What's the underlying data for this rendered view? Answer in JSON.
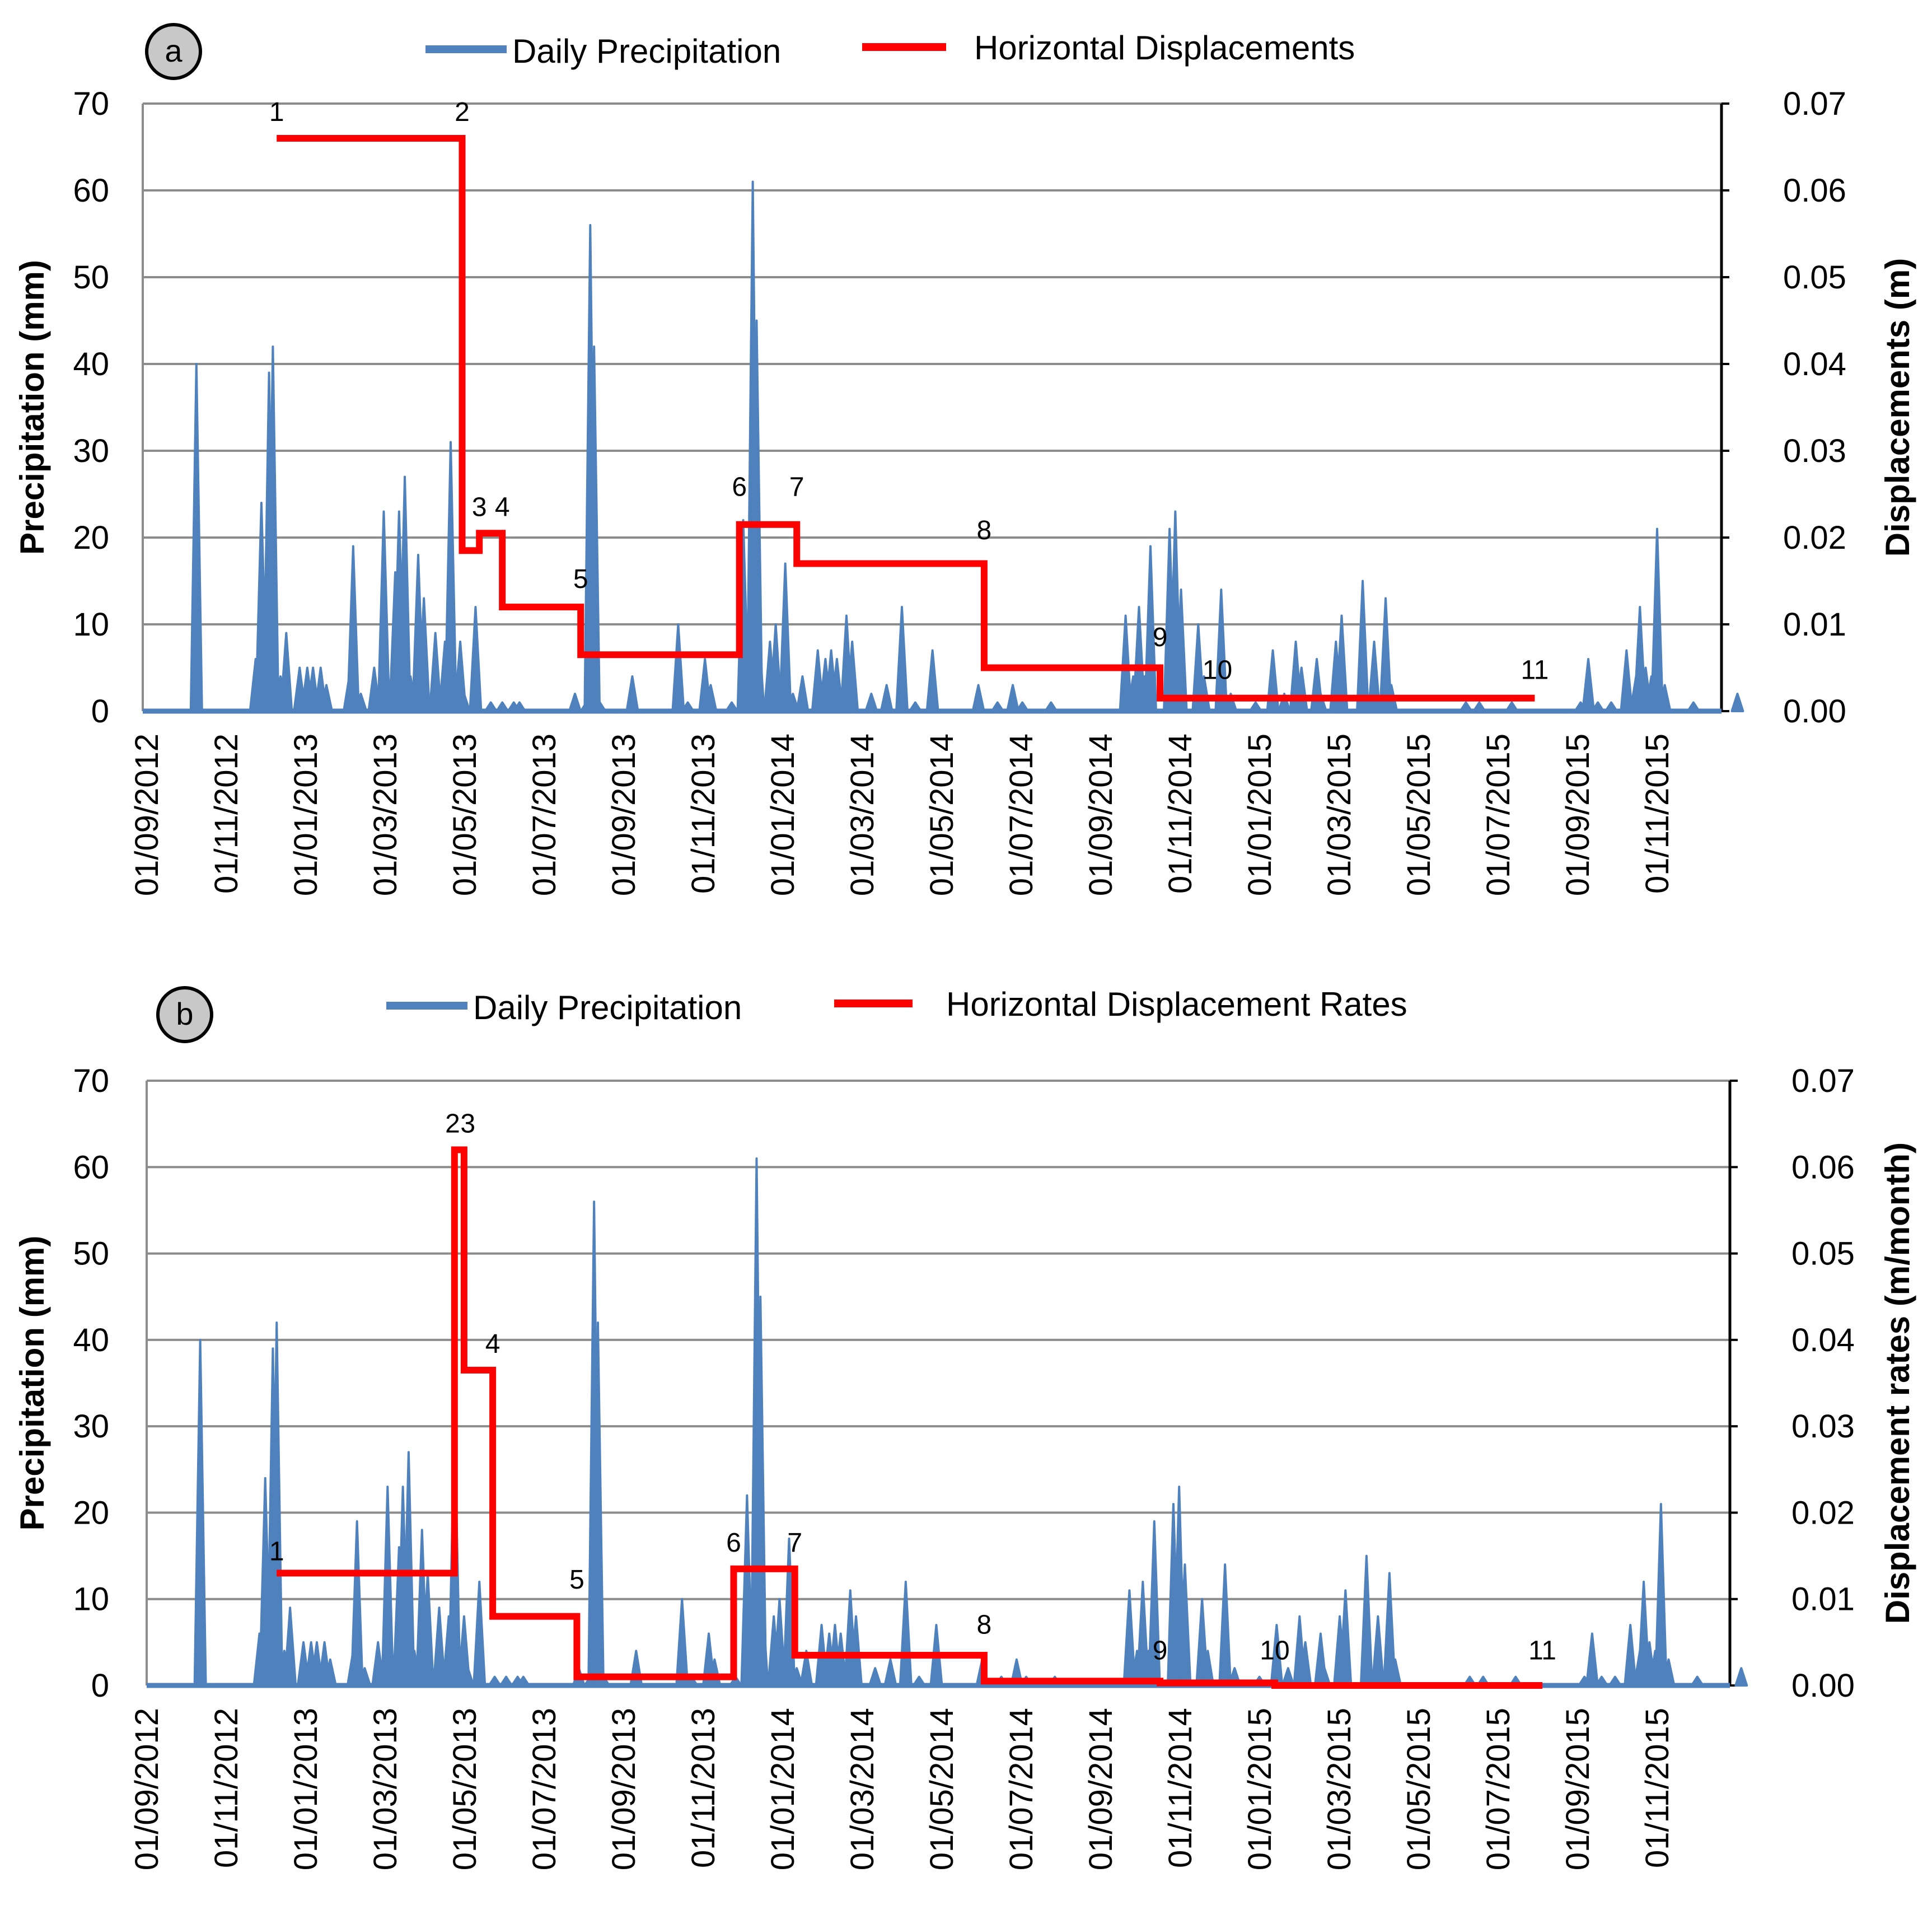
{
  "chart_data": [
    {
      "panel": "a",
      "type": "line",
      "legend": {
        "precip": "Daily Precipitation",
        "disp": "Horizontal Displacements"
      },
      "ylabel_left": "Precipitation (mm)",
      "ylabel_right": "Displacements (m)",
      "ylim_left": [
        0,
        70
      ],
      "ylim_right": [
        0,
        0.07
      ],
      "yticks_left": [
        "0",
        "10",
        "20",
        "30",
        "40",
        "50",
        "60",
        "70"
      ],
      "yticks_right": [
        "0.00",
        "0.01",
        "0.02",
        "0.03",
        "0.04",
        "0.05",
        "0.06",
        "0.07"
      ],
      "x_ticks": [
        "01/09/2012",
        "01/11/2012",
        "01/01/2013",
        "01/03/2013",
        "01/05/2013",
        "01/07/2013",
        "01/09/2013",
        "01/11/2013",
        "01/01/2014",
        "01/03/2014",
        "01/05/2014",
        "01/07/2014",
        "01/09/2014",
        "01/11/2014",
        "01/01/2015",
        "01/03/2015",
        "01/05/2015",
        "01/07/2015",
        "01/09/2015",
        "01/11/2015"
      ],
      "precip_events": [
        [
          26,
          40
        ],
        [
          57,
          6
        ],
        [
          60,
          24
        ],
        [
          64,
          39
        ],
        [
          66,
          42
        ],
        [
          70,
          4
        ],
        [
          73,
          9
        ],
        [
          80,
          5
        ],
        [
          84,
          5
        ],
        [
          87,
          5
        ],
        [
          91,
          5
        ],
        [
          94,
          3
        ],
        [
          106,
          4
        ],
        [
          108,
          19
        ],
        [
          112,
          2
        ],
        [
          119,
          5
        ],
        [
          124,
          23
        ],
        [
          128,
          4
        ],
        [
          130,
          16
        ],
        [
          132,
          23
        ],
        [
          135,
          27
        ],
        [
          138,
          4
        ],
        [
          142,
          18
        ],
        [
          145,
          13
        ],
        [
          151,
          9
        ],
        [
          156,
          8
        ],
        [
          159,
          31
        ],
        [
          164,
          8
        ],
        [
          166,
          2
        ],
        [
          172,
          12
        ],
        [
          180,
          1
        ],
        [
          186,
          1
        ],
        [
          192,
          1
        ],
        [
          195,
          1
        ],
        [
          224,
          2
        ],
        [
          230,
          1
        ],
        [
          232,
          56
        ],
        [
          234,
          42
        ],
        [
          237,
          1
        ],
        [
          254,
          4
        ],
        [
          278,
          10
        ],
        [
          283,
          1
        ],
        [
          292,
          6
        ],
        [
          295,
          3
        ],
        [
          306,
          1
        ],
        [
          312,
          22
        ],
        [
          317,
          61
        ],
        [
          319,
          45
        ],
        [
          320,
          10
        ],
        [
          326,
          8
        ],
        [
          329,
          10
        ],
        [
          334,
          17
        ],
        [
          338,
          2
        ],
        [
          343,
          4
        ],
        [
          351,
          7
        ],
        [
          355,
          6
        ],
        [
          358,
          7
        ],
        [
          361,
          6
        ],
        [
          364,
          2
        ],
        [
          366,
          11
        ],
        [
          369,
          8
        ],
        [
          379,
          2
        ],
        [
          387,
          3
        ],
        [
          395,
          12
        ],
        [
          402,
          1
        ],
        [
          411,
          7
        ],
        [
          435,
          3
        ],
        [
          445,
          1
        ],
        [
          453,
          3
        ],
        [
          458,
          1
        ],
        [
          473,
          1
        ],
        [
          512,
          11
        ],
        [
          516,
          4
        ],
        [
          519,
          12
        ],
        [
          522,
          4
        ],
        [
          525,
          19
        ],
        [
          535,
          21
        ],
        [
          538,
          23
        ],
        [
          541,
          14
        ],
        [
          550,
          10
        ],
        [
          553,
          4
        ],
        [
          562,
          14
        ],
        [
          567,
          2
        ],
        [
          580,
          1
        ],
        [
          589,
          7
        ],
        [
          595,
          2
        ],
        [
          601,
          8
        ],
        [
          604,
          5
        ],
        [
          612,
          6
        ],
        [
          614,
          2
        ],
        [
          622,
          8
        ],
        [
          625,
          11
        ],
        [
          636,
          15
        ],
        [
          642,
          8
        ],
        [
          648,
          13
        ],
        [
          651,
          3
        ],
        [
          690,
          1
        ],
        [
          697,
          1
        ],
        [
          714,
          1
        ],
        [
          750,
          1
        ],
        [
          754,
          6
        ],
        [
          759,
          1
        ],
        [
          766,
          1
        ],
        [
          774,
          7
        ],
        [
          779,
          4
        ],
        [
          781,
          12
        ],
        [
          784,
          5
        ],
        [
          787,
          4
        ],
        [
          790,
          21
        ],
        [
          794,
          3
        ],
        [
          809,
          1
        ],
        [
          832,
          2
        ]
      ],
      "series": [
        {
          "name": "Horizontal Displacements",
          "t": [
            0,
            1,
            2,
            3,
            4,
            5,
            6,
            7,
            8,
            9,
            10,
            11
          ],
          "values": [
            0.066,
            0.066,
            0.0185,
            0.0205,
            0.012,
            0.0065,
            0.0215,
            0.017,
            0.005,
            0.0015,
            0.0015,
            0.0015
          ]
        }
      ],
      "point_dates": [
        68,
        165,
        174,
        186,
        227,
        310,
        340,
        438,
        530,
        650,
        650,
        726
      ],
      "point_labels": [
        "1",
        "2",
        "3",
        "4",
        "5",
        "6",
        "7",
        "8",
        "9",
        "10",
        "11"
      ]
    },
    {
      "panel": "b",
      "type": "line",
      "legend": {
        "precip": "Daily Precipitation",
        "disp": "Horizontal Displacement Rates"
      },
      "ylabel_left": "Precipitation (mm)",
      "ylabel_right": "Displacement rates (m/month)",
      "ylim_left": [
        0,
        70
      ],
      "ylim_right": [
        0,
        0.07
      ],
      "yticks_left": [
        "0",
        "10",
        "20",
        "30",
        "40",
        "50",
        "60",
        "70"
      ],
      "yticks_right": [
        "0.00",
        "0.01",
        "0.02",
        "0.03",
        "0.04",
        "0.05",
        "0.06",
        "0.07"
      ],
      "x_ticks": [
        "01/09/2012",
        "01/11/2012",
        "01/01/2013",
        "01/03/2013",
        "01/05/2013",
        "01/07/2013",
        "01/09/2013",
        "01/11/2013",
        "01/01/2014",
        "01/03/2014",
        "01/05/2014",
        "01/07/2014",
        "01/09/2014",
        "01/11/2014",
        "01/01/2015",
        "01/03/2015",
        "01/05/2015",
        "01/07/2015",
        "01/09/2015",
        "01/11/2015"
      ],
      "series": [
        {
          "name": "Horizontal Displacement Rates",
          "values": [
            0.013,
            0.062,
            0.0365,
            0.008,
            0.001,
            0.0135,
            0.0035,
            0.0005,
            0.0003,
            0.0,
            0.0
          ]
        }
      ],
      "point_dates": [
        68,
        161,
        166,
        181,
        225,
        307,
        339,
        438,
        530,
        590,
        730
      ],
      "point_labels": [
        "1",
        "2",
        "3",
        "4",
        "5",
        "6",
        "7",
        "8",
        "9",
        "10",
        "11"
      ]
    }
  ]
}
